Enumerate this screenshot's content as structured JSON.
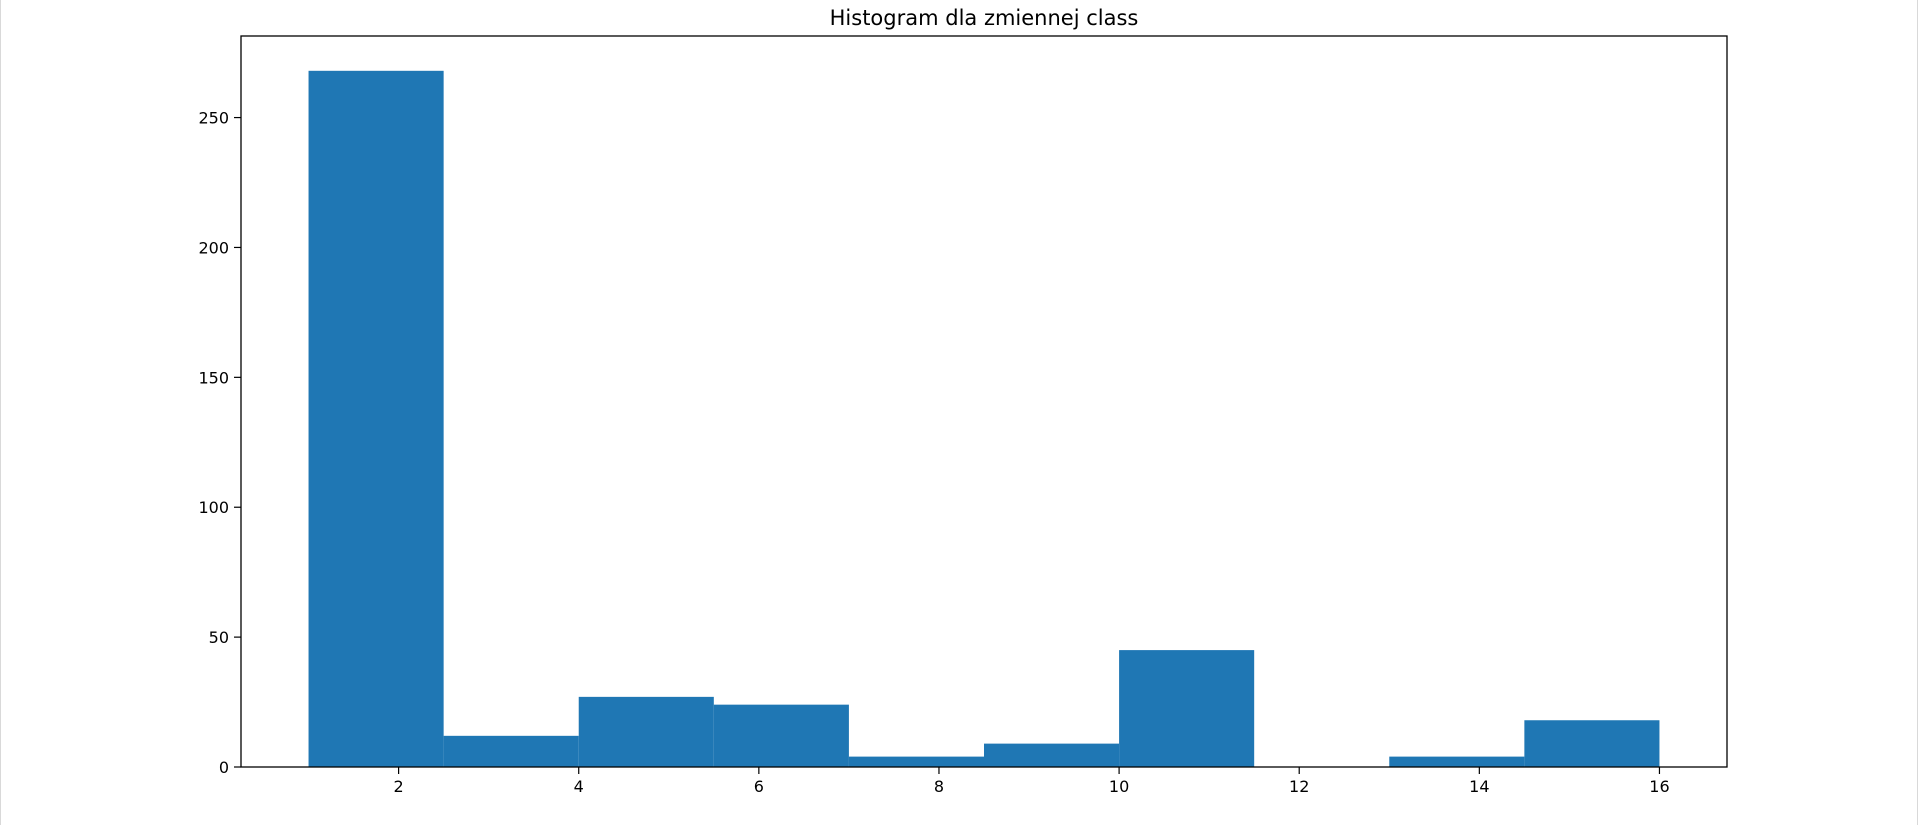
{
  "chart_data": {
    "type": "histogram",
    "title": "Histogram dla zmiennej class",
    "xlabel": "",
    "ylabel": "",
    "bins": [
      {
        "x0": 1.0,
        "x1": 2.5,
        "count": 268
      },
      {
        "x0": 2.5,
        "x1": 4.0,
        "count": 12
      },
      {
        "x0": 4.0,
        "x1": 5.5,
        "count": 27
      },
      {
        "x0": 5.5,
        "x1": 7.0,
        "count": 24
      },
      {
        "x0": 7.0,
        "x1": 8.5,
        "count": 4
      },
      {
        "x0": 8.5,
        "x1": 10.0,
        "count": 9
      },
      {
        "x0": 10.0,
        "x1": 11.5,
        "count": 45
      },
      {
        "x0": 11.5,
        "x1": 13.0,
        "count": 0
      },
      {
        "x0": 13.0,
        "x1": 14.5,
        "count": 4
      },
      {
        "x0": 14.5,
        "x1": 16.0,
        "count": 18
      }
    ],
    "xlim": [
      0.25,
      16.75
    ],
    "ylim": [
      0,
      281.4
    ],
    "xticks": [
      2,
      4,
      6,
      8,
      10,
      12,
      14,
      16
    ],
    "yticks": [
      0,
      50,
      100,
      150,
      200,
      250
    ],
    "bar_color": "#1f77b4",
    "grid": false,
    "legend": "none"
  }
}
